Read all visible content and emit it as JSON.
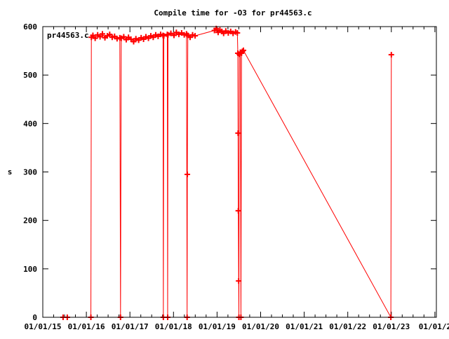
{
  "chart_data": {
    "type": "line",
    "title": "Compile time for -O3 for pr44563.c",
    "xlabel": "",
    "ylabel": "s",
    "xlim": [
      "2015-01-01",
      "2024-01-01"
    ],
    "ylim": [
      0,
      600
    ],
    "x_tick_labels": [
      "01/01/15",
      "01/01/16",
      "01/01/17",
      "01/01/18",
      "01/01/19",
      "01/01/20",
      "01/01/21",
      "01/01/22",
      "01/01/23",
      "01/01/2"
    ],
    "y_ticks": [
      0,
      100,
      200,
      300,
      400,
      500,
      600
    ],
    "grid": false,
    "legend_position": "top-left",
    "color": "#ff0000",
    "series": [
      {
        "name": "pr44563.c",
        "points": [
          [
            "2015-06-20",
            0
          ],
          [
            "2015-07-25",
            0
          ],
          [
            "2016-02-08",
            0
          ],
          [
            "2016-02-12",
            578
          ],
          [
            "2016-02-25",
            582
          ],
          [
            "2016-03-15",
            576
          ],
          [
            "2016-04-05",
            583
          ],
          [
            "2016-04-25",
            579
          ],
          [
            "2016-05-15",
            585
          ],
          [
            "2016-06-05",
            577
          ],
          [
            "2016-06-25",
            581
          ],
          [
            "2016-07-15",
            584
          ],
          [
            "2016-08-05",
            578
          ],
          [
            "2016-08-25",
            580
          ],
          [
            "2016-09-15",
            575
          ],
          [
            "2016-10-08",
            577
          ],
          [
            "2016-10-14",
            0
          ],
          [
            "2016-10-20",
            576
          ],
          [
            "2016-11-10",
            579
          ],
          [
            "2016-12-01",
            573
          ],
          [
            "2016-12-20",
            578
          ],
          [
            "2017-01-10",
            574
          ],
          [
            "2017-02-01",
            569
          ],
          [
            "2017-02-20",
            575
          ],
          [
            "2017-03-15",
            572
          ],
          [
            "2017-04-05",
            577
          ],
          [
            "2017-04-25",
            574
          ],
          [
            "2017-05-15",
            579
          ],
          [
            "2017-06-05",
            576
          ],
          [
            "2017-06-25",
            581
          ],
          [
            "2017-07-15",
            578
          ],
          [
            "2017-08-05",
            583
          ],
          [
            "2017-08-25",
            580
          ],
          [
            "2017-09-15",
            584
          ],
          [
            "2017-10-05",
            582
          ],
          [
            "2017-10-08",
            0
          ],
          [
            "2017-10-12",
            581
          ],
          [
            "2017-11-10",
            584
          ],
          [
            "2017-11-13",
            0
          ],
          [
            "2017-11-16",
            583
          ],
          [
            "2017-12-10",
            586
          ],
          [
            "2018-01-05",
            582
          ],
          [
            "2018-01-25",
            588
          ],
          [
            "2018-02-15",
            584
          ],
          [
            "2018-03-10",
            587
          ],
          [
            "2018-04-01",
            583
          ],
          [
            "2018-04-20",
            585
          ],
          [
            "2018-04-25",
            0
          ],
          [
            "2018-04-27",
            295
          ],
          [
            "2018-05-01",
            582
          ],
          [
            "2018-05-20",
            578
          ],
          [
            "2018-06-10",
            583
          ],
          [
            "2018-07-01",
            581
          ],
          [
            "2018-12-10",
            592
          ],
          [
            "2018-12-25",
            596
          ],
          [
            "2019-01-10",
            588
          ],
          [
            "2019-01-25",
            593
          ],
          [
            "2019-02-10",
            590
          ],
          [
            "2019-02-25",
            586
          ],
          [
            "2019-03-15",
            591
          ],
          [
            "2019-04-05",
            587
          ],
          [
            "2019-04-25",
            590
          ],
          [
            "2019-05-15",
            586
          ],
          [
            "2019-06-05",
            589
          ],
          [
            "2019-06-20",
            587
          ],
          [
            "2019-06-24",
            545
          ],
          [
            "2019-06-26",
            380
          ],
          [
            "2019-06-28",
            220
          ],
          [
            "2019-07-01",
            75
          ],
          [
            "2019-07-03",
            0
          ],
          [
            "2019-07-06",
            543
          ],
          [
            "2019-07-15",
            547
          ],
          [
            "2019-07-20",
            0
          ],
          [
            "2019-07-25",
            545
          ],
          [
            "2019-08-01",
            549
          ],
          [
            "2019-08-10",
            551
          ],
          [
            "2022-12-28",
            0
          ],
          [
            "2023-01-01",
            542
          ]
        ]
      }
    ]
  }
}
